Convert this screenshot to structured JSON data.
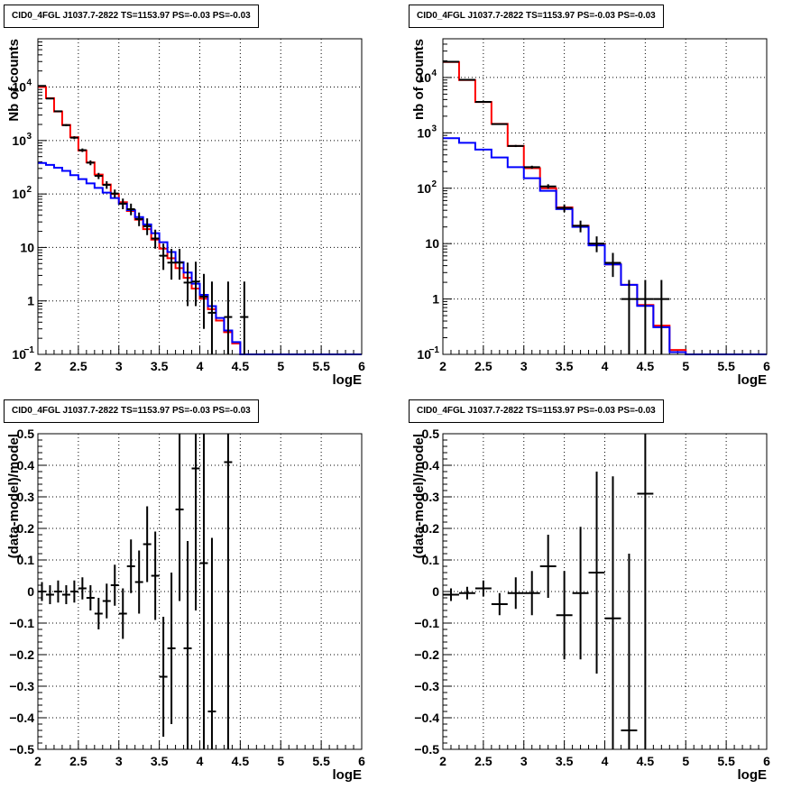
{
  "colors": {
    "data": "#000000",
    "total": "#ff0000",
    "component": "#0000ff",
    "grid": "#000000",
    "frame": "#000000"
  },
  "chart_data": [
    {
      "type": "histogram",
      "title": "CID0_4FGL J1037.7-2822 TS=1153.97 PS=-0.03 PS=-0.03",
      "xlabel": "logE",
      "ylabel": "Nb of counts",
      "xlim": [
        2,
        6
      ],
      "ylim": [
        0.1,
        80000
      ],
      "yscale": "log",
      "grid": true,
      "xticks": [
        "2",
        "2.5",
        "3",
        "3.5",
        "4",
        "4.5",
        "5",
        "5.5",
        "6"
      ],
      "yticks": [
        {
          "v": 0.1,
          "label": "10",
          "exp": "−1"
        },
        {
          "v": 1,
          "label": "1",
          "exp": ""
        },
        {
          "v": 10,
          "label": "10",
          "exp": ""
        },
        {
          "v": 100,
          "label": "10",
          "exp": "2"
        },
        {
          "v": 1000,
          "label": "10",
          "exp": "3"
        },
        {
          "v": 10000,
          "label": "10",
          "exp": "4"
        }
      ],
      "bin_edges": [
        2.0,
        2.1,
        2.2,
        2.3,
        2.4,
        2.5,
        2.6,
        2.7,
        2.8,
        2.9,
        3.0,
        3.1,
        3.2,
        3.3,
        3.4,
        3.5,
        3.6,
        3.7,
        3.8,
        3.9,
        4.0,
        4.1,
        4.2,
        4.3,
        4.4,
        4.5,
        4.6,
        4.7,
        4.8,
        4.9,
        5.0,
        5.1,
        5.2,
        5.3,
        5.4,
        5.5,
        5.6,
        5.7,
        5.8,
        5.9,
        6.0
      ],
      "series": [
        {
          "name": "",
          "style": "step",
          "color": "#ff0000",
          "values": [
            10000,
            6200,
            3500,
            1950,
            1150,
            650,
            390,
            230,
            150,
            100,
            70,
            48,
            33,
            22,
            14,
            9.5,
            6.3,
            4.1,
            2.7,
            1.7,
            1.1,
            0.7,
            0.43,
            0.26,
            0.16,
            0.1,
            0.1,
            0.1,
            0.1,
            0.1,
            0.1,
            0.1,
            0.1,
            0.1,
            0.1,
            0.1,
            0.1,
            0.1,
            0.1,
            0.1
          ]
        },
        {
          "name": "",
          "style": "step",
          "color": "#0000ff",
          "values": [
            380,
            350,
            310,
            270,
            225,
            190,
            158,
            130,
            106,
            84,
            66,
            50,
            37,
            27,
            18.5,
            12.5,
            8.2,
            5.3,
            3.4,
            2.1,
            1.3,
            0.8,
            0.48,
            0.28,
            0.17,
            0.1,
            0.1,
            0.1,
            0.1,
            0.1,
            0.1,
            0.1,
            0.1,
            0.1,
            0.1,
            0.1,
            0.1,
            0.1,
            0.1,
            0.1
          ]
        },
        {
          "name": "",
          "style": "errorbar",
          "color": "#000000",
          "points": [
            {
              "x": 2.05,
              "y": 10500,
              "lo": 10300,
              "hi": 10700
            },
            {
              "x": 2.15,
              "y": 6100,
              "lo": 5920,
              "hi": 6280
            },
            {
              "x": 2.25,
              "y": 3520,
              "lo": 3400,
              "hi": 3640
            },
            {
              "x": 2.35,
              "y": 1940,
              "lo": 1850,
              "hi": 2030
            },
            {
              "x": 2.45,
              "y": 1130,
              "lo": 1060,
              "hi": 1200
            },
            {
              "x": 2.55,
              "y": 660,
              "lo": 610,
              "hi": 710
            },
            {
              "x": 2.65,
              "y": 385,
              "lo": 345,
              "hi": 425
            },
            {
              "x": 2.75,
              "y": 218,
              "lo": 190,
              "hi": 248
            },
            {
              "x": 2.85,
              "y": 148,
              "lo": 125,
              "hi": 173
            },
            {
              "x": 2.95,
              "y": 102,
              "lo": 85,
              "hi": 121
            },
            {
              "x": 3.05,
              "y": 66,
              "lo": 52,
              "hi": 82
            },
            {
              "x": 3.15,
              "y": 52,
              "lo": 40,
              "hi": 66
            },
            {
              "x": 3.25,
              "y": 34,
              "lo": 25,
              "hi": 45
            },
            {
              "x": 3.35,
              "y": 25,
              "lo": 17,
              "hi": 35
            },
            {
              "x": 3.45,
              "y": 14.7,
              "lo": 9.5,
              "hi": 21.5
            },
            {
              "x": 3.55,
              "y": 7,
              "lo": 3.8,
              "hi": 11.8
            },
            {
              "x": 3.65,
              "y": 5.2,
              "lo": 2.5,
              "hi": 9.4
            },
            {
              "x": 3.75,
              "y": 5.2,
              "lo": 2.5,
              "hi": 9.4
            },
            {
              "x": 3.85,
              "y": 2.2,
              "lo": 0.8,
              "hi": 5.2
            },
            {
              "x": 3.95,
              "y": 2.3,
              "lo": 0.8,
              "hi": 5.4
            },
            {
              "x": 4.05,
              "y": 1.2,
              "lo": 0.3,
              "hi": 3.2
            },
            {
              "x": 4.15,
              "y": 0.6,
              "lo": 0.1,
              "hi": 2.3
            },
            {
              "x": 4.35,
              "y": 0.5,
              "lo": 0.1,
              "hi": 2.3
            },
            {
              "x": 4.55,
              "y": 0.5,
              "lo": 0.1,
              "hi": 2.3
            }
          ]
        }
      ]
    },
    {
      "type": "histogram",
      "title": "CID0_4FGL J1037.7-2822 TS=1153.97 PS=-0.03 PS=-0.03",
      "xlabel": "logE",
      "ylabel": "nb of counts",
      "xlim": [
        2,
        6
      ],
      "ylim": [
        0.1,
        50000
      ],
      "yscale": "log",
      "grid": true,
      "xticks": [
        "2",
        "2.5",
        "3",
        "3.5",
        "4",
        "4.5",
        "5",
        "5.5",
        "6"
      ],
      "yticks": [
        {
          "v": 0.1,
          "label": "10",
          "exp": "−1"
        },
        {
          "v": 1,
          "label": "1",
          "exp": ""
        },
        {
          "v": 10,
          "label": "10",
          "exp": ""
        },
        {
          "v": 100,
          "label": "10",
          "exp": "2"
        },
        {
          "v": 1000,
          "label": "10",
          "exp": "3"
        },
        {
          "v": 10000,
          "label": "10",
          "exp": "4"
        }
      ],
      "bin_edges": [
        2.0,
        2.2,
        2.4,
        2.6,
        2.8,
        3.0,
        3.2,
        3.4,
        3.6,
        3.8,
        4.0,
        4.2,
        4.4,
        4.6,
        4.8,
        5.0,
        5.2,
        5.4,
        5.6,
        5.8,
        6.0
      ],
      "series": [
        {
          "name": "",
          "style": "step",
          "color": "#ff0000",
          "values": [
            19000,
            9000,
            3600,
            1450,
            580,
            230,
            100,
            45,
            21,
            9.5,
            4.2,
            1.8,
            0.78,
            0.33,
            0.12,
            0.1,
            0.1,
            0.1,
            0.1,
            0.1
          ]
        },
        {
          "name": "",
          "style": "step",
          "color": "#0000ff",
          "values": [
            800,
            660,
            500,
            360,
            240,
            152,
            90,
            42,
            20,
            9.3,
            4.2,
            1.8,
            0.75,
            0.31,
            0.11,
            0.1,
            0.1,
            0.1,
            0.1,
            0.1
          ]
        },
        {
          "name": "",
          "style": "errorbar",
          "color": "#000000",
          "points": [
            {
              "x": 2.1,
              "y": 19200,
              "lo": 19000,
              "hi": 19400
            },
            {
              "x": 2.3,
              "y": 9100,
              "lo": 8950,
              "hi": 9250
            },
            {
              "x": 2.5,
              "y": 3620,
              "lo": 3540,
              "hi": 3700
            },
            {
              "x": 2.7,
              "y": 1440,
              "lo": 1400,
              "hi": 1480
            },
            {
              "x": 2.9,
              "y": 580,
              "lo": 555,
              "hi": 605
            },
            {
              "x": 3.1,
              "y": 240,
              "lo": 225,
              "hi": 255
            },
            {
              "x": 3.3,
              "y": 108,
              "lo": 98,
              "hi": 118
            },
            {
              "x": 3.5,
              "y": 44,
              "lo": 37,
              "hi": 51
            },
            {
              "x": 3.7,
              "y": 21,
              "lo": 16,
              "hi": 26
            },
            {
              "x": 3.9,
              "y": 10,
              "lo": 7,
              "hi": 13.5
            },
            {
              "x": 4.1,
              "y": 4.5,
              "lo": 2.5,
              "hi": 6.8
            },
            {
              "x": 4.3,
              "y": 1,
              "lo": 0.1,
              "hi": 2.2
            },
            {
              "x": 4.5,
              "y": 1,
              "lo": 0.1,
              "hi": 2.2
            },
            {
              "x": 4.7,
              "y": 1,
              "lo": 0.1,
              "hi": 2.2
            }
          ]
        }
      ]
    },
    {
      "type": "scatter",
      "title": "CID0_4FGL J1037.7-2822 TS=1153.97 PS=-0.03 PS=-0.03",
      "xlabel": "logE",
      "ylabel": "(data-model)/model",
      "xlim": [
        2,
        6
      ],
      "ylim": [
        -0.5,
        0.5
      ],
      "yscale": "linear",
      "grid": true,
      "xticks": [
        "2",
        "2.5",
        "3",
        "3.5",
        "4",
        "4.5",
        "5",
        "5.5",
        "6"
      ],
      "yticks": [
        "−0.5",
        "−0.4",
        "−0.3",
        "−0.2",
        "−0.1",
        "0",
        "0.1",
        "0.2",
        "0.3",
        "0.4",
        "0.5"
      ],
      "xerr_halfwidth": 0.05,
      "points": [
        {
          "x": 2.05,
          "y": 0.0,
          "err": 0.03
        },
        {
          "x": 2.15,
          "y": -0.01,
          "err": 0.03
        },
        {
          "x": 2.25,
          "y": 0.0,
          "err": 0.035
        },
        {
          "x": 2.35,
          "y": -0.01,
          "err": 0.03
        },
        {
          "x": 2.45,
          "y": 0.0,
          "err": 0.035
        },
        {
          "x": 2.55,
          "y": 0.01,
          "err": 0.035
        },
        {
          "x": 2.65,
          "y": -0.02,
          "err": 0.04
        },
        {
          "x": 2.75,
          "y": -0.07,
          "err": 0.05
        },
        {
          "x": 2.85,
          "y": -0.03,
          "err": 0.055
        },
        {
          "x": 2.95,
          "y": 0.02,
          "err": 0.065
        },
        {
          "x": 3.05,
          "y": -0.07,
          "err": 0.08
        },
        {
          "x": 3.15,
          "y": 0.08,
          "err": 0.085
        },
        {
          "x": 3.25,
          "y": 0.03,
          "err": 0.1
        },
        {
          "x": 3.35,
          "y": 0.15,
          "err": 0.12
        },
        {
          "x": 3.45,
          "y": 0.05,
          "err": 0.14
        },
        {
          "x": 3.55,
          "y": -0.27,
          "err": 0.19
        },
        {
          "x": 3.65,
          "y": -0.18,
          "err": 0.24
        },
        {
          "x": 3.75,
          "y": 0.26,
          "err": 0.29
        },
        {
          "x": 3.85,
          "y": -0.18,
          "err": 0.34
        },
        {
          "x": 3.95,
          "y": 0.39,
          "err": 0.45
        },
        {
          "x": 4.05,
          "y": 0.09,
          "err": 0.6
        },
        {
          "x": 4.15,
          "y": -0.38,
          "err": 0.55
        },
        {
          "x": 4.35,
          "y": 0.41,
          "err": 1.0
        }
      ]
    },
    {
      "type": "scatter",
      "title": "CID0_4FGL J1037.7-2822 TS=1153.97 PS=-0.03 PS=-0.03",
      "xlabel": "logE",
      "ylabel": "(data-model)/model",
      "xlim": [
        2,
        6
      ],
      "ylim": [
        -0.5,
        0.5
      ],
      "yscale": "linear",
      "grid": true,
      "xticks": [
        "2",
        "2.5",
        "3",
        "3.5",
        "4",
        "4.5",
        "5",
        "5.5",
        "6"
      ],
      "yticks": [
        "−0.5",
        "−0.4",
        "−0.3",
        "−0.2",
        "−0.1",
        "0",
        "0.1",
        "0.2",
        "0.3",
        "0.4",
        "0.5"
      ],
      "xerr_halfwidth": 0.1,
      "points": [
        {
          "x": 2.1,
          "y": -0.01,
          "err": 0.02
        },
        {
          "x": 2.3,
          "y": -0.005,
          "err": 0.02
        },
        {
          "x": 2.5,
          "y": 0.01,
          "err": 0.025
        },
        {
          "x": 2.7,
          "y": -0.04,
          "err": 0.035
        },
        {
          "x": 2.9,
          "y": -0.005,
          "err": 0.05
        },
        {
          "x": 3.1,
          "y": -0.005,
          "err": 0.07
        },
        {
          "x": 3.3,
          "y": 0.08,
          "err": 0.1
        },
        {
          "x": 3.5,
          "y": -0.075,
          "err": 0.14
        },
        {
          "x": 3.7,
          "y": -0.005,
          "err": 0.21
        },
        {
          "x": 3.9,
          "y": 0.06,
          "err": 0.32
        },
        {
          "x": 4.1,
          "y": -0.085,
          "err": 0.45
        },
        {
          "x": 4.3,
          "y": -0.44,
          "err": 0.56
        },
        {
          "x": 4.5,
          "y": 0.31,
          "err": 1.0
        }
      ]
    }
  ]
}
